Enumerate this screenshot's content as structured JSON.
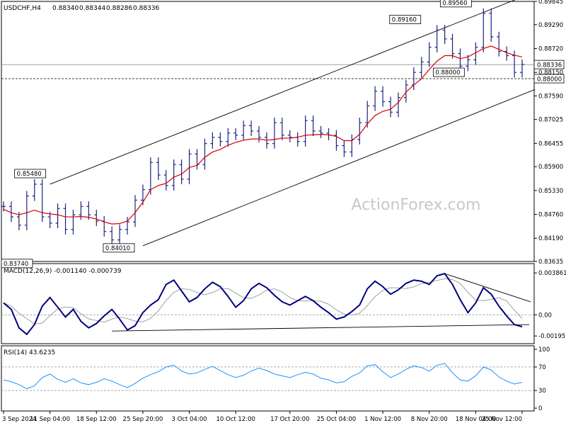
{
  "colors": {
    "background": "#ffffff",
    "price_bars": "#1a237e",
    "moving_average": "#d50000",
    "macd_line": "#000080",
    "signal_line": "#a0a0a0",
    "rsi_line": "#1e90ff",
    "trendlines": "#000000",
    "grid_level": "#909090",
    "watermark": "#c8c8c8"
  },
  "watermark": "ActionForex.com",
  "chart_data": [
    {
      "type": "ohlc",
      "panel": "price",
      "title": "USDCHF,H4",
      "ohlc_header": [
        "0.88340",
        "0.88344",
        "0.88286",
        "0.88336"
      ],
      "y_ticks": [
        "0.89845",
        "0.89290",
        "0.88720",
        "0.88150",
        "0.87590",
        "0.87025",
        "0.86455",
        "0.85900",
        "0.85330",
        "0.84760",
        "0.84190",
        "0.83635"
      ],
      "ylim": [
        0.83635,
        0.89845
      ],
      "current_price_label": "0.88336",
      "level_label": "0.88000",
      "swing_labels": [
        {
          "text": "0.85480",
          "value": 0.8548,
          "x": "11 Sep 04:00"
        },
        {
          "text": "0.84010",
          "value": 0.8401,
          "x": "25 Sep 20:00"
        },
        {
          "text": "0.89160",
          "value": 0.8916,
          "x": "8 Nov 20:00"
        },
        {
          "text": "0.89560",
          "value": 0.8956,
          "x": "18 Nov 04:00"
        },
        {
          "text": "0.88000",
          "value": 0.88,
          "x": "18 Nov 04:00"
        },
        {
          "text": "0.83740",
          "value": 0.8374,
          "x": "3 Sep 2024"
        }
      ],
      "channel": {
        "upper": [
          {
            "x": "11 Sep 04:00",
            "y": 0.8548
          },
          {
            "x": "25 Nov 12:00",
            "y": 0.8995
          }
        ],
        "lower": [
          {
            "x": "25 Sep 20:00",
            "y": 0.8401
          },
          {
            "x": "25 Nov 12:00",
            "y": 0.8762
          }
        ]
      },
      "close_path": [
        0.8495,
        0.847,
        0.845,
        0.852,
        0.8548,
        0.847,
        0.8455,
        0.849,
        0.844,
        0.8475,
        0.8495,
        0.8475,
        0.846,
        0.8435,
        0.8415,
        0.844,
        0.8458,
        0.851,
        0.8535,
        0.86,
        0.857,
        0.8545,
        0.8595,
        0.856,
        0.862,
        0.8595,
        0.8645,
        0.866,
        0.865,
        0.867,
        0.8665,
        0.8688,
        0.8675,
        0.866,
        0.8645,
        0.8695,
        0.8665,
        0.866,
        0.865,
        0.87,
        0.8675,
        0.867,
        0.8665,
        0.864,
        0.8625,
        0.8655,
        0.8695,
        0.8735,
        0.877,
        0.8745,
        0.872,
        0.8755,
        0.8785,
        0.8815,
        0.884,
        0.8875,
        0.8916,
        0.8895,
        0.886,
        0.883,
        0.8845,
        0.8875,
        0.8956,
        0.89,
        0.8865,
        0.8855,
        0.8815,
        0.8834
      ],
      "ma_path": [
        0.8488,
        0.848,
        0.8475,
        0.848,
        0.8486,
        0.848,
        0.8477,
        0.8475,
        0.847,
        0.847,
        0.8471,
        0.8469,
        0.8465,
        0.8458,
        0.8453,
        0.8454,
        0.846,
        0.848,
        0.8505,
        0.8535,
        0.8545,
        0.855,
        0.8565,
        0.8572,
        0.8588,
        0.8593,
        0.8612,
        0.8625,
        0.8631,
        0.8641,
        0.8648,
        0.8653,
        0.8656,
        0.8656,
        0.8653,
        0.8655,
        0.8658,
        0.8658,
        0.866,
        0.8665,
        0.8666,
        0.8667,
        0.8666,
        0.8662,
        0.8652,
        0.8652,
        0.8667,
        0.8692,
        0.8712,
        0.8722,
        0.8727,
        0.8743,
        0.8768,
        0.8785,
        0.88,
        0.8822,
        0.8842,
        0.8855,
        0.8855,
        0.8848,
        0.8852,
        0.8862,
        0.8872,
        0.8878,
        0.887,
        0.8862,
        0.8856,
        0.8852
      ]
    },
    {
      "type": "line",
      "panel": "macd",
      "title": "MACD(12,26,9) -0.001140 -0.000739",
      "y_ticks": [
        "0.003861",
        "0.00",
        "-0.00195"
      ],
      "ylim": [
        -0.0024,
        0.0042
      ],
      "series": [
        {
          "name": "MACD",
          "values": [
            0.0011,
            0.0005,
            -0.0012,
            -0.0018,
            -0.0009,
            0.0008,
            0.0016,
            0.0007,
            -0.0002,
            0.0005,
            -0.0006,
            -0.0012,
            -0.0008,
            -0.0001,
            0.0005,
            -0.0004,
            -0.0014,
            -0.001,
            0.0002,
            0.0009,
            0.0014,
            0.0028,
            0.0032,
            0.0022,
            0.0012,
            0.0016,
            0.0024,
            0.003,
            0.0026,
            0.0017,
            0.0007,
            0.0013,
            0.0024,
            0.0029,
            0.0025,
            0.0018,
            0.0012,
            0.0009,
            0.0013,
            0.0017,
            0.0013,
            0.0007,
            0.0002,
            -0.0004,
            -0.0002,
            0.0003,
            0.0009,
            0.0024,
            0.0031,
            0.0026,
            0.0019,
            0.0023,
            0.0029,
            0.0032,
            0.0031,
            0.0028,
            0.0036,
            0.0038,
            0.0028,
            0.0014,
            0.0002,
            0.0011,
            0.0025,
            0.0019,
            0.0008,
            -0.0001,
            -0.0009,
            -0.0011
          ]
        }
      ]
    },
    {
      "type": "line",
      "panel": "rsi",
      "title": "RSI(14) 43.6235",
      "y_ticks": [
        "100",
        "70",
        "30",
        "0"
      ],
      "ylim": [
        0,
        100
      ],
      "levels": [
        70,
        30
      ],
      "series": [
        {
          "name": "RSI(14)",
          "values": [
            48,
            45,
            40,
            33,
            38,
            52,
            58,
            49,
            44,
            50,
            43,
            40,
            44,
            50,
            46,
            40,
            35,
            42,
            51,
            57,
            62,
            70,
            73,
            63,
            58,
            60,
            66,
            71,
            64,
            57,
            52,
            56,
            63,
            68,
            64,
            58,
            55,
            52,
            57,
            61,
            58,
            51,
            48,
            43,
            45,
            54,
            60,
            72,
            74,
            62,
            52,
            58,
            66,
            72,
            69,
            63,
            73,
            76,
            60,
            48,
            46,
            55,
            70,
            65,
            53,
            46,
            41,
            44
          ]
        }
      ]
    },
    {
      "type": "axis",
      "panel": "time",
      "x_ticks": [
        "3 Sep 2024",
        "11 Sep 04:00",
        "18 Sep 12:00",
        "25 Sep 20:00",
        "3 Oct 04:00",
        "10 Oct 12:00",
        "17 Oct 20:00",
        "25 Oct 04:00",
        "1 Nov 12:00",
        "8 Nov 20:00",
        "18 Nov 04:00",
        "25 Nov 12:00"
      ]
    }
  ]
}
